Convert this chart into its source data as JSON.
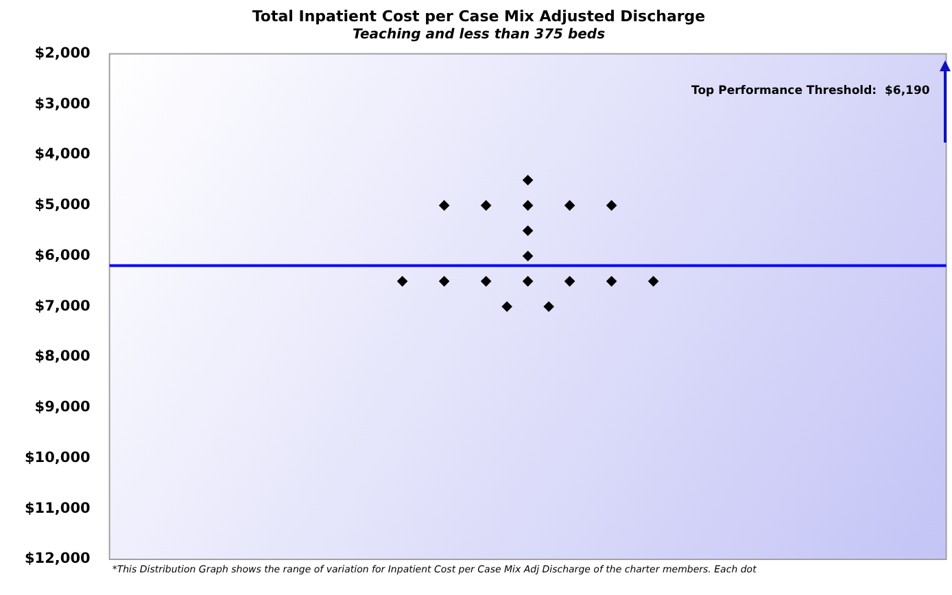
{
  "chart_data": {
    "type": "scatter",
    "title": "Total Inpatient Cost per Case Mix Adjusted Discharge",
    "subtitle": "Teaching and less than 375 beds",
    "categories": [
      null,
      null,
      null,
      null,
      null,
      null,
      null,
      null,
      null,
      null,
      null,
      null,
      null,
      null,
      null,
      null,
      null,
      null,
      null,
      null,
      null,
      null,
      null,
      null,
      null,
      null,
      null,
      null,
      null,
      null,
      null,
      null,
      null,
      null,
      null,
      null,
      null,
      null,
      null,
      null,
      null
    ],
    "series": [
      {
        "color": "#000000",
        "values": [
          null,
          null,
          null,
          null,
          null,
          null,
          null,
          null,
          null,
          null,
          null,
          null,
          null,
          null,
          6500,
          null,
          6500,
          null,
          6500,
          null,
          6500,
          null,
          6500,
          null,
          6500,
          null,
          6500,
          null,
          null,
          null,
          null,
          null,
          null,
          null,
          null,
          null,
          null,
          null,
          null,
          null,
          null
        ]
      },
      {
        "color": "#000000",
        "values": [
          null,
          null,
          null,
          null,
          null,
          null,
          null,
          null,
          null,
          null,
          null,
          null,
          null,
          null,
          null,
          null,
          5000,
          null,
          5000,
          null,
          5000,
          null,
          5000,
          null,
          5000,
          null,
          null,
          null,
          null,
          null,
          null,
          null,
          null,
          null,
          null,
          null,
          null,
          null,
          null,
          null,
          null
        ]
      },
      {
        "color": "#000000",
        "values": [
          null,
          null,
          null,
          null,
          null,
          null,
          null,
          null,
          null,
          null,
          null,
          null,
          null,
          null,
          null,
          null,
          null,
          null,
          null,
          null,
          4500,
          null,
          null,
          null,
          null,
          null,
          null,
          null,
          null,
          null,
          null,
          null,
          null,
          null,
          null,
          null,
          null,
          null,
          null,
          null,
          null
        ]
      },
      {
        "color": "#000000",
        "values": [
          null,
          null,
          null,
          null,
          null,
          null,
          null,
          null,
          null,
          null,
          null,
          null,
          null,
          null,
          null,
          null,
          null,
          null,
          null,
          null,
          5500,
          null,
          null,
          null,
          null,
          null,
          null,
          null,
          null,
          null,
          null,
          null,
          null,
          null,
          null,
          null,
          null,
          null,
          null,
          null,
          null
        ]
      },
      {
        "color": "#000000",
        "values": [
          null,
          null,
          null,
          null,
          null,
          null,
          null,
          null,
          null,
          null,
          null,
          null,
          null,
          null,
          null,
          null,
          null,
          null,
          null,
          null,
          6000,
          null,
          null,
          null,
          null,
          null,
          null,
          null,
          null,
          null,
          null,
          null,
          null,
          null,
          null,
          null,
          null,
          null,
          null,
          null,
          null
        ]
      },
      {
        "color": "#000000",
        "values": [
          null,
          null,
          null,
          null,
          null,
          null,
          null,
          null,
          null,
          null,
          null,
          null,
          null,
          null,
          null,
          null,
          null,
          null,
          null,
          7000,
          null,
          7000,
          null,
          null,
          null,
          null,
          null,
          null,
          null,
          null,
          null,
          null,
          null,
          null,
          null,
          null,
          null,
          null,
          null,
          null,
          null
        ]
      }
    ],
    "ylim": [
      12000,
      2000
    ],
    "yticks": [
      {
        "value": 2000,
        "label": "$2,000"
      },
      {
        "value": 3000,
        "label": "$3,000"
      },
      {
        "value": 4000,
        "label": "$4,000"
      },
      {
        "value": 5000,
        "label": "$5,000"
      },
      {
        "value": 6000,
        "label": "$6,000"
      },
      {
        "value": 7000,
        "label": "$7,000"
      },
      {
        "value": 8000,
        "label": "$8,000"
      },
      {
        "value": 9000,
        "label": "$9,000"
      },
      {
        "value": 10000,
        "label": "$10,000"
      },
      {
        "value": 11000,
        "label": "$11,000"
      },
      {
        "value": 12000,
        "label": "$12,000"
      }
    ],
    "tick_labels": "y",
    "marker": "diamond",
    "ref_lines": [
      {
        "axis": "y",
        "value": 6190,
        "color": "#0000ff"
      }
    ],
    "annotations": [
      "Top Performance Threshold:  $6,190",
      "*This Distribution Graph shows the range of variation for Inpatient Cost per Case Mix Adj Discharge of the charter members. Each dot"
    ]
  }
}
